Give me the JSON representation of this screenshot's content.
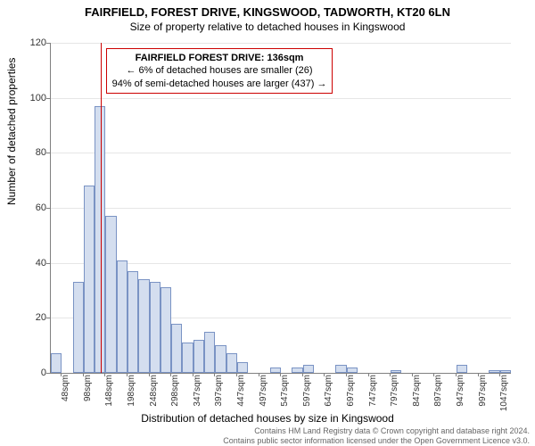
{
  "title": "FAIRFIELD, FOREST DRIVE, KINGSWOOD, TADWORTH, KT20 6LN",
  "subtitle": "Size of property relative to detached houses in Kingswood",
  "ylabel": "Number of detached properties",
  "xlabel": "Distribution of detached houses by size in Kingswood",
  "footer1": "Contains HM Land Registry data © Crown copyright and database right 2024.",
  "footer2": "Contains public sector information licensed under the Open Government Licence v3.0.",
  "annotation": {
    "line1": "FAIRFIELD FOREST DRIVE: 136sqm",
    "line2": "← 6% of detached houses are smaller (26)",
    "line3": "94% of semi-detached houses are larger (437) →",
    "border_color": "#cc0000"
  },
  "chart": {
    "type": "histogram",
    "background_color": "#ffffff",
    "grid_color": "#e6e6e6",
    "axis_color": "#808080",
    "bar_fill": "#d4deef",
    "bar_border": "#7a93c4",
    "marker_color": "#cc0000",
    "marker_x": 136,
    "ylim": [
      0,
      120
    ],
    "ytick_step": 20,
    "x_min": 23,
    "x_max": 1072,
    "x_bin_width": 50,
    "xtick_labels": [
      "48sqm",
      "98sqm",
      "148sqm",
      "198sqm",
      "248sqm",
      "298sqm",
      "347sqm",
      "397sqm",
      "447sqm",
      "497sqm",
      "547sqm",
      "597sqm",
      "647sqm",
      "697sqm",
      "747sqm",
      "797sqm",
      "847sqm",
      "897sqm",
      "947sqm",
      "997sqm",
      "1047sqm"
    ],
    "bars": [
      7,
      0,
      33,
      68,
      97,
      57,
      41,
      37,
      34,
      33,
      31,
      18,
      11,
      12,
      15,
      10,
      7,
      4,
      0,
      0,
      2,
      0,
      2,
      3,
      0,
      0,
      3,
      2,
      0,
      0,
      0,
      1,
      0,
      0,
      0,
      0,
      0,
      3,
      0,
      0,
      1,
      1
    ]
  }
}
